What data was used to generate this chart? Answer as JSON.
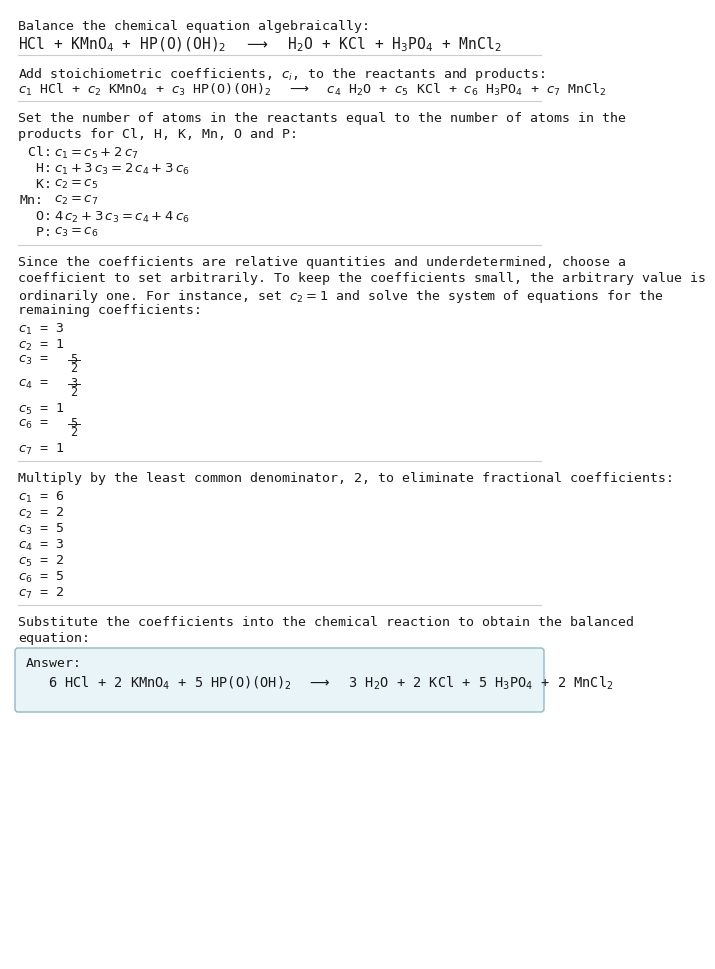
{
  "bg_color": "#ffffff",
  "text_color": "#1a1a1a",
  "line_color": "#cccccc",
  "answer_box_color": "#e8f4f8",
  "answer_box_border": "#90b8c8",
  "section1": {
    "title": "Balance the chemical equation algebraically:",
    "eq": "HCl + KMnO$_4$ + HP(O)(OH)$_2$  $\\longrightarrow$  H$_2$O + KCl + H$_3$PO$_4$ + MnCl$_2$"
  },
  "section2": {
    "title": "Add stoichiometric coefficients, $c_i$, to the reactants and products:",
    "eq": "$c_1$ HCl + $c_2$ KMnO$_4$ + $c_3$ HP(O)(OH)$_2$  $\\longrightarrow$  $c_4$ H$_2$O + $c_5$ KCl + $c_6$ H$_3$PO$_4$ + $c_7$ MnCl$_2$"
  },
  "section3": {
    "title1": "Set the number of atoms in the reactants equal to the number of atoms in the",
    "title2": "products for Cl, H, K, Mn, O and P:",
    "rows": [
      {
        "label": " Cl:",
        "eq": "$c_1 = c_5 + 2\\,c_7$"
      },
      {
        "label": "  H:",
        "eq": "$c_1 + 3\\,c_3 = 2\\,c_4 + 3\\,c_6$"
      },
      {
        "label": "  K:",
        "eq": "$c_2 = c_5$"
      },
      {
        "label": "Mn:",
        "eq": "$c_2 = c_7$"
      },
      {
        "label": "  O:",
        "eq": "$4\\,c_2 + 3\\,c_3 = c_4 + 4\\,c_6$"
      },
      {
        "label": "  P:",
        "eq": "$c_3 = c_6$"
      }
    ]
  },
  "section4": {
    "desc1": "Since the coefficients are relative quantities and underdetermined, choose a",
    "desc2": "coefficient to set arbitrarily. To keep the coefficients small, the arbitrary value is",
    "desc3": "ordinarily one. For instance, set $c_2 = 1$ and solve the system of equations for the",
    "desc4": "remaining coefficients:",
    "coeffs": [
      {
        "label": "$c_1$",
        "val": "3",
        "frac": false
      },
      {
        "label": "$c_2$",
        "val": "1",
        "frac": false
      },
      {
        "label": "$c_3$",
        "num": "5",
        "den": "2",
        "frac": true
      },
      {
        "label": "$c_4$",
        "num": "3",
        "den": "2",
        "frac": true
      },
      {
        "label": "$c_5$",
        "val": "1",
        "frac": false
      },
      {
        "label": "$c_6$",
        "num": "5",
        "den": "2",
        "frac": true
      },
      {
        "label": "$c_7$",
        "val": "1",
        "frac": false
      }
    ]
  },
  "section5": {
    "desc": "Multiply by the least common denominator, 2, to eliminate fractional coefficients:",
    "coeffs": [
      {
        "label": "$c_1$",
        "val": "6"
      },
      {
        "label": "$c_2$",
        "val": "2"
      },
      {
        "label": "$c_3$",
        "val": "5"
      },
      {
        "label": "$c_4$",
        "val": "3"
      },
      {
        "label": "$c_5$",
        "val": "2"
      },
      {
        "label": "$c_6$",
        "val": "5"
      },
      {
        "label": "$c_7$",
        "val": "2"
      }
    ]
  },
  "section6": {
    "desc1": "Substitute the coefficients into the chemical reaction to obtain the balanced",
    "desc2": "equation:"
  },
  "answer": {
    "label": "Answer:",
    "eq": "6 HCl + 2 KMnO$_4$ + 5 HP(O)(OH)$_2$  $\\longrightarrow$  3 H$_2$O + 2 KCl + 5 H$_3$PO$_4$ + 2 MnCl$_2$"
  }
}
